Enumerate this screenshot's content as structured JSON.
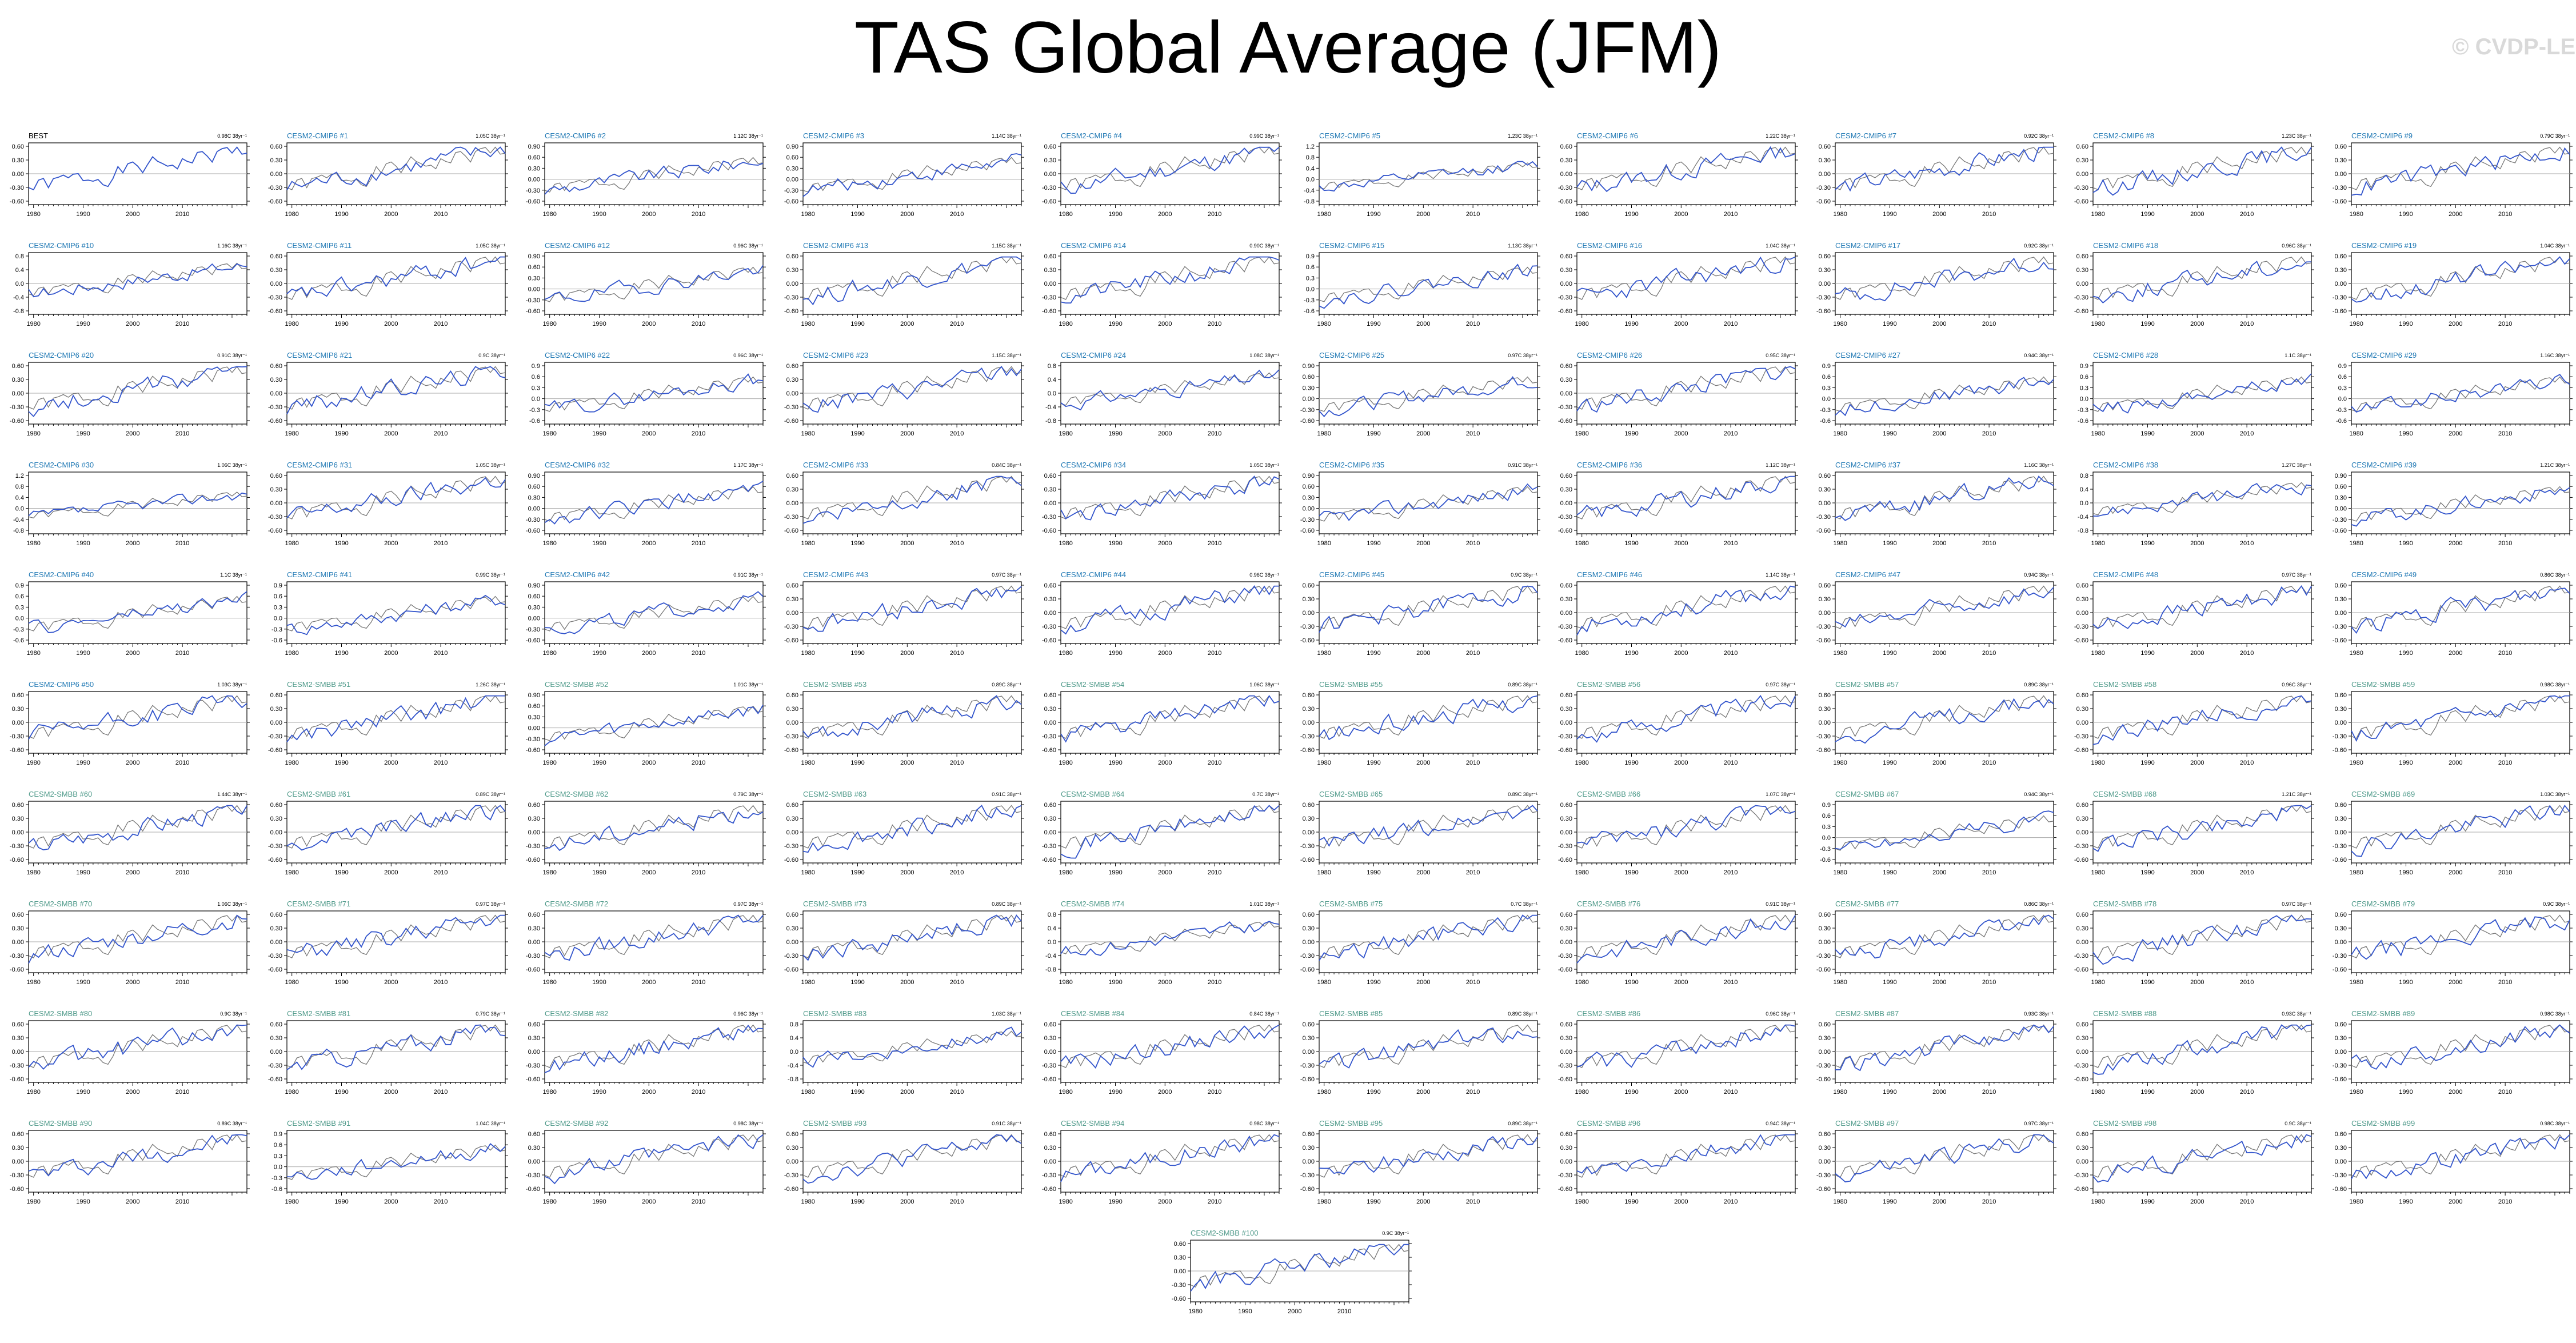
{
  "title": "TAS Global Average (JFM)",
  "watermark": "© CVDP-LE",
  "colors": {
    "obs_title": "#000000",
    "cmip6_title": "#1f78b4",
    "smbb_title": "#4f9a8a",
    "model_line": "#3355cc",
    "obs_line": "#777777",
    "zero_line": "#aaaaaa",
    "frame": "#000000"
  },
  "chart_data": {
    "type": "line",
    "x_range": [
      1979,
      2023
    ],
    "x_ticks": [
      1980,
      1990,
      2000,
      2010
    ],
    "y_label_sets": {
      "a": [
        "0.60",
        "0.30",
        "0.00",
        "-0.30",
        "-0.60"
      ],
      "b": [
        "0.9",
        "0.6",
        "0.3",
        "0.0",
        "-0.3",
        "-0.6"
      ],
      "c": [
        "0.8",
        "0.4",
        "0.0",
        "-0.4",
        "-0.8"
      ],
      "d": [
        "1.2",
        "0.8",
        "0.4",
        "0.0",
        "-0.4",
        "-0.8"
      ],
      "e": [
        "0.90",
        "0.60",
        "0.30",
        "0.00",
        "-0.30",
        "-0.60"
      ]
    },
    "panels": [
      {
        "title": "BEST",
        "trend": "0.98C 38yr⁻¹",
        "group": "obs",
        "yset": "a"
      },
      {
        "title": "CESM2-CMIP6 #1",
        "trend": "1.05C 38yr⁻¹",
        "group": "cmip6",
        "yset": "a"
      },
      {
        "title": "CESM2-CMIP6 #2",
        "trend": "1.12C 38yr⁻¹",
        "group": "cmip6",
        "yset": "e"
      },
      {
        "title": "CESM2-CMIP6 #3",
        "trend": "1.14C 38yr⁻¹",
        "group": "cmip6",
        "yset": "e"
      },
      {
        "title": "CESM2-CMIP6 #4",
        "trend": "0.99C 38yr⁻¹",
        "group": "cmip6",
        "yset": "a"
      },
      {
        "title": "CESM2-CMIP6 #5",
        "trend": "1.23C 38yr⁻¹",
        "group": "cmip6",
        "yset": "d"
      },
      {
        "title": "CESM2-CMIP6 #6",
        "trend": "1.22C 38yr⁻¹",
        "group": "cmip6",
        "yset": "a"
      },
      {
        "title": "CESM2-CMIP6 #7",
        "trend": "0.92C 38yr⁻¹",
        "group": "cmip6",
        "yset": "a"
      },
      {
        "title": "CESM2-CMIP6 #8",
        "trend": "1.23C 38yr⁻¹",
        "group": "cmip6",
        "yset": "a"
      },
      {
        "title": "CESM2-CMIP6 #9",
        "trend": "0.79C 38yr⁻¹",
        "group": "cmip6",
        "yset": "a"
      },
      {
        "title": "CESM2-CMIP6 #10",
        "trend": "1.16C 38yr⁻¹",
        "group": "cmip6",
        "yset": "c"
      },
      {
        "title": "CESM2-CMIP6 #11",
        "trend": "1.05C 38yr⁻¹",
        "group": "cmip6",
        "yset": "a"
      },
      {
        "title": "CESM2-CMIP6 #12",
        "trend": "0.96C 38yr⁻¹",
        "group": "cmip6",
        "yset": "e"
      },
      {
        "title": "CESM2-CMIP6 #13",
        "trend": "1.15C 38yr⁻¹",
        "group": "cmip6",
        "yset": "a"
      },
      {
        "title": "CESM2-CMIP6 #14",
        "trend": "0.90C 38yr⁻¹",
        "group": "cmip6",
        "yset": "a"
      },
      {
        "title": "CESM2-CMIP6 #15",
        "trend": "1.13C 38yr⁻¹",
        "group": "cmip6",
        "yset": "b"
      },
      {
        "title": "CESM2-CMIP6 #16",
        "trend": "1.04C 38yr⁻¹",
        "group": "cmip6",
        "yset": "a"
      },
      {
        "title": "CESM2-CMIP6 #17",
        "trend": "0.92C 38yr⁻¹",
        "group": "cmip6",
        "yset": "a"
      },
      {
        "title": "CESM2-CMIP6 #18",
        "trend": "0.96C 38yr⁻¹",
        "group": "cmip6",
        "yset": "a"
      },
      {
        "title": "CESM2-CMIP6 #19",
        "trend": "1.04C 38yr⁻¹",
        "group": "cmip6",
        "yset": "a"
      },
      {
        "title": "CESM2-CMIP6 #20",
        "trend": "0.91C 38yr⁻¹",
        "group": "cmip6",
        "yset": "a"
      },
      {
        "title": "CESM2-CMIP6 #21",
        "trend": "0.9C 38yr⁻¹",
        "group": "cmip6",
        "yset": "a"
      },
      {
        "title": "CESM2-CMIP6 #22",
        "trend": "0.96C 38yr⁻¹",
        "group": "cmip6",
        "yset": "b"
      },
      {
        "title": "CESM2-CMIP6 #23",
        "trend": "1.15C 38yr⁻¹",
        "group": "cmip6",
        "yset": "a"
      },
      {
        "title": "CESM2-CMIP6 #24",
        "trend": "1.08C 38yr⁻¹",
        "group": "cmip6",
        "yset": "c"
      },
      {
        "title": "CESM2-CMIP6 #25",
        "trend": "0.97C 38yr⁻¹",
        "group": "cmip6",
        "yset": "e"
      },
      {
        "title": "CESM2-CMIP6 #26",
        "trend": "0.95C 38yr⁻¹",
        "group": "cmip6",
        "yset": "a"
      },
      {
        "title": "CESM2-CMIP6 #27",
        "trend": "0.94C 38yr⁻¹",
        "group": "cmip6",
        "yset": "b"
      },
      {
        "title": "CESM2-CMIP6 #28",
        "trend": "1.1C 38yr⁻¹",
        "group": "cmip6",
        "yset": "b"
      },
      {
        "title": "CESM2-CMIP6 #29",
        "trend": "1.16C 38yr⁻¹",
        "group": "cmip6",
        "yset": "b"
      },
      {
        "title": "CESM2-CMIP6 #30",
        "trend": "1.06C 38yr⁻¹",
        "group": "cmip6",
        "yset": "d"
      },
      {
        "title": "CESM2-CMIP6 #31",
        "trend": "1.05C 38yr⁻¹",
        "group": "cmip6",
        "yset": "a"
      },
      {
        "title": "CESM2-CMIP6 #32",
        "trend": "1.17C 38yr⁻¹",
        "group": "cmip6",
        "yset": "e"
      },
      {
        "title": "CESM2-CMIP6 #33",
        "trend": "0.84C 38yr⁻¹",
        "group": "cmip6",
        "yset": "a"
      },
      {
        "title": "CESM2-CMIP6 #34",
        "trend": "1.05C 38yr⁻¹",
        "group": "cmip6",
        "yset": "a"
      },
      {
        "title": "CESM2-CMIP6 #35",
        "trend": "0.91C 38yr⁻¹",
        "group": "cmip6",
        "yset": "e"
      },
      {
        "title": "CESM2-CMIP6 #36",
        "trend": "1.12C 38yr⁻¹",
        "group": "cmip6",
        "yset": "a"
      },
      {
        "title": "CESM2-CMIP6 #37",
        "trend": "1.16C 38yr⁻¹",
        "group": "cmip6",
        "yset": "a"
      },
      {
        "title": "CESM2-CMIP6 #38",
        "trend": "1.27C 38yr⁻¹",
        "group": "cmip6",
        "yset": "c"
      },
      {
        "title": "CESM2-CMIP6 #39",
        "trend": "1.21C 38yr⁻¹",
        "group": "cmip6",
        "yset": "e"
      },
      {
        "title": "CESM2-CMIP6 #40",
        "trend": "1.1C 38yr⁻¹",
        "group": "cmip6",
        "yset": "b"
      },
      {
        "title": "CESM2-CMIP6 #41",
        "trend": "0.99C 38yr⁻¹",
        "group": "cmip6",
        "yset": "b"
      },
      {
        "title": "CESM2-CMIP6 #42",
        "trend": "0.91C 38yr⁻¹",
        "group": "cmip6",
        "yset": "e"
      },
      {
        "title": "CESM2-CMIP6 #43",
        "trend": "0.97C 38yr⁻¹",
        "group": "cmip6",
        "yset": "a"
      },
      {
        "title": "CESM2-CMIP6 #44",
        "trend": "0.96C 38yr⁻¹",
        "group": "cmip6",
        "yset": "a"
      },
      {
        "title": "CESM2-CMIP6 #45",
        "trend": "0.9C 38yr⁻¹",
        "group": "cmip6",
        "yset": "a"
      },
      {
        "title": "CESM2-CMIP6 #46",
        "trend": "1.14C 38yr⁻¹",
        "group": "cmip6",
        "yset": "a"
      },
      {
        "title": "CESM2-CMIP6 #47",
        "trend": "0.94C 38yr⁻¹",
        "group": "cmip6",
        "yset": "a"
      },
      {
        "title": "CESM2-CMIP6 #48",
        "trend": "0.97C 38yr⁻¹",
        "group": "cmip6",
        "yset": "a"
      },
      {
        "title": "CESM2-CMIP6 #49",
        "trend": "0.86C 38yr⁻¹",
        "group": "cmip6",
        "yset": "a"
      },
      {
        "title": "CESM2-CMIP6 #50",
        "trend": "1.03C 38yr⁻¹",
        "group": "cmip6",
        "yset": "a"
      },
      {
        "title": "CESM2-SMBB #51",
        "trend": "1.26C 38yr⁻¹",
        "group": "smbb",
        "yset": "a"
      },
      {
        "title": "CESM2-SMBB #52",
        "trend": "1.01C 38yr⁻¹",
        "group": "smbb",
        "yset": "e"
      },
      {
        "title": "CESM2-SMBB #53",
        "trend": "0.89C 38yr⁻¹",
        "group": "smbb",
        "yset": "a"
      },
      {
        "title": "CESM2-SMBB #54",
        "trend": "1.06C 38yr⁻¹",
        "group": "smbb",
        "yset": "a"
      },
      {
        "title": "CESM2-SMBB #55",
        "trend": "0.89C 38yr⁻¹",
        "group": "smbb",
        "yset": "a"
      },
      {
        "title": "CESM2-SMBB #56",
        "trend": "0.97C 38yr⁻¹",
        "group": "smbb",
        "yset": "a"
      },
      {
        "title": "CESM2-SMBB #57",
        "trend": "0.89C 38yr⁻¹",
        "group": "smbb",
        "yset": "a"
      },
      {
        "title": "CESM2-SMBB #58",
        "trend": "0.96C 38yr⁻¹",
        "group": "smbb",
        "yset": "a"
      },
      {
        "title": "CESM2-SMBB #59",
        "trend": "0.98C 38yr⁻¹",
        "group": "smbb",
        "yset": "a"
      },
      {
        "title": "CESM2-SMBB #60",
        "trend": "1.44C 38yr⁻¹",
        "group": "smbb",
        "yset": "a"
      },
      {
        "title": "CESM2-SMBB #61",
        "trend": "0.89C 38yr⁻¹",
        "group": "smbb",
        "yset": "a"
      },
      {
        "title": "CESM2-SMBB #62",
        "trend": "0.79C 38yr⁻¹",
        "group": "smbb",
        "yset": "a"
      },
      {
        "title": "CESM2-SMBB #63",
        "trend": "0.91C 38yr⁻¹",
        "group": "smbb",
        "yset": "a"
      },
      {
        "title": "CESM2-SMBB #64",
        "trend": "0.7C 38yr⁻¹",
        "group": "smbb",
        "yset": "a"
      },
      {
        "title": "CESM2-SMBB #65",
        "trend": "0.89C 38yr⁻¹",
        "group": "smbb",
        "yset": "a"
      },
      {
        "title": "CESM2-SMBB #66",
        "trend": "1.07C 38yr⁻¹",
        "group": "smbb",
        "yset": "a"
      },
      {
        "title": "CESM2-SMBB #67",
        "trend": "0.94C 38yr⁻¹",
        "group": "smbb",
        "yset": "b"
      },
      {
        "title": "CESM2-SMBB #68",
        "trend": "1.21C 38yr⁻¹",
        "group": "smbb",
        "yset": "a"
      },
      {
        "title": "CESM2-SMBB #69",
        "trend": "1.03C 38yr⁻¹",
        "group": "smbb",
        "yset": "a"
      },
      {
        "title": "CESM2-SMBB #70",
        "trend": "1.06C 38yr⁻¹",
        "group": "smbb",
        "yset": "a"
      },
      {
        "title": "CESM2-SMBB #71",
        "trend": "0.97C 38yr⁻¹",
        "group": "smbb",
        "yset": "a"
      },
      {
        "title": "CESM2-SMBB #72",
        "trend": "0.97C 38yr⁻¹",
        "group": "smbb",
        "yset": "a"
      },
      {
        "title": "CESM2-SMBB #73",
        "trend": "0.89C 38yr⁻¹",
        "group": "smbb",
        "yset": "a"
      },
      {
        "title": "CESM2-SMBB #74",
        "trend": "1.01C 38yr⁻¹",
        "group": "smbb",
        "yset": "c"
      },
      {
        "title": "CESM2-SMBB #75",
        "trend": "0.7C 38yr⁻¹",
        "group": "smbb",
        "yset": "a"
      },
      {
        "title": "CESM2-SMBB #76",
        "trend": "0.91C 38yr⁻¹",
        "group": "smbb",
        "yset": "a"
      },
      {
        "title": "CESM2-SMBB #77",
        "trend": "0.86C 38yr⁻¹",
        "group": "smbb",
        "yset": "a"
      },
      {
        "title": "CESM2-SMBB #78",
        "trend": "0.97C 38yr⁻¹",
        "group": "smbb",
        "yset": "a"
      },
      {
        "title": "CESM2-SMBB #79",
        "trend": "0.9C 38yr⁻¹",
        "group": "smbb",
        "yset": "a"
      },
      {
        "title": "CESM2-SMBB #80",
        "trend": "0.9C 38yr⁻¹",
        "group": "smbb",
        "yset": "a"
      },
      {
        "title": "CESM2-SMBB #81",
        "trend": "0.79C 38yr⁻¹",
        "group": "smbb",
        "yset": "a"
      },
      {
        "title": "CESM2-SMBB #82",
        "trend": "0.96C 38yr⁻¹",
        "group": "smbb",
        "yset": "a"
      },
      {
        "title": "CESM2-SMBB #83",
        "trend": "1.03C 38yr⁻¹",
        "group": "smbb",
        "yset": "c"
      },
      {
        "title": "CESM2-SMBB #84",
        "trend": "0.84C 38yr⁻¹",
        "group": "smbb",
        "yset": "a"
      },
      {
        "title": "CESM2-SMBB #85",
        "trend": "0.89C 38yr⁻¹",
        "group": "smbb",
        "yset": "a"
      },
      {
        "title": "CESM2-SMBB #86",
        "trend": "0.96C 38yr⁻¹",
        "group": "smbb",
        "yset": "a"
      },
      {
        "title": "CESM2-SMBB #87",
        "trend": "0.93C 38yr⁻¹",
        "group": "smbb",
        "yset": "a"
      },
      {
        "title": "CESM2-SMBB #88",
        "trend": "0.93C 38yr⁻¹",
        "group": "smbb",
        "yset": "a"
      },
      {
        "title": "CESM2-SMBB #89",
        "trend": "0.98C 38yr⁻¹",
        "group": "smbb",
        "yset": "a"
      },
      {
        "title": "CESM2-SMBB #90",
        "trend": "0.89C 38yr⁻¹",
        "group": "smbb",
        "yset": "a"
      },
      {
        "title": "CESM2-SMBB #91",
        "trend": "1.04C 38yr⁻¹",
        "group": "smbb",
        "yset": "b"
      },
      {
        "title": "CESM2-SMBB #92",
        "trend": "0.98C 38yr⁻¹",
        "group": "smbb",
        "yset": "a"
      },
      {
        "title": "CESM2-SMBB #93",
        "trend": "0.91C 38yr⁻¹",
        "group": "smbb",
        "yset": "a"
      },
      {
        "title": "CESM2-SMBB #94",
        "trend": "0.98C 38yr⁻¹",
        "group": "smbb",
        "yset": "a"
      },
      {
        "title": "CESM2-SMBB #95",
        "trend": "0.89C 38yr⁻¹",
        "group": "smbb",
        "yset": "a"
      },
      {
        "title": "CESM2-SMBB #96",
        "trend": "0.94C 38yr⁻¹",
        "group": "smbb",
        "yset": "a"
      },
      {
        "title": "CESM2-SMBB #97",
        "trend": "0.97C 38yr⁻¹",
        "group": "smbb",
        "yset": "a"
      },
      {
        "title": "CESM2-SMBB #98",
        "trend": "0.9C 38yr⁻¹",
        "group": "smbb",
        "yset": "a"
      },
      {
        "title": "CESM2-SMBB #99",
        "trend": "0.98C 38yr⁻¹",
        "group": "smbb",
        "yset": "a"
      },
      {
        "title": "CESM2-SMBB #100",
        "trend": "0.9C 38yr⁻¹",
        "group": "smbb",
        "yset": "a"
      }
    ]
  }
}
